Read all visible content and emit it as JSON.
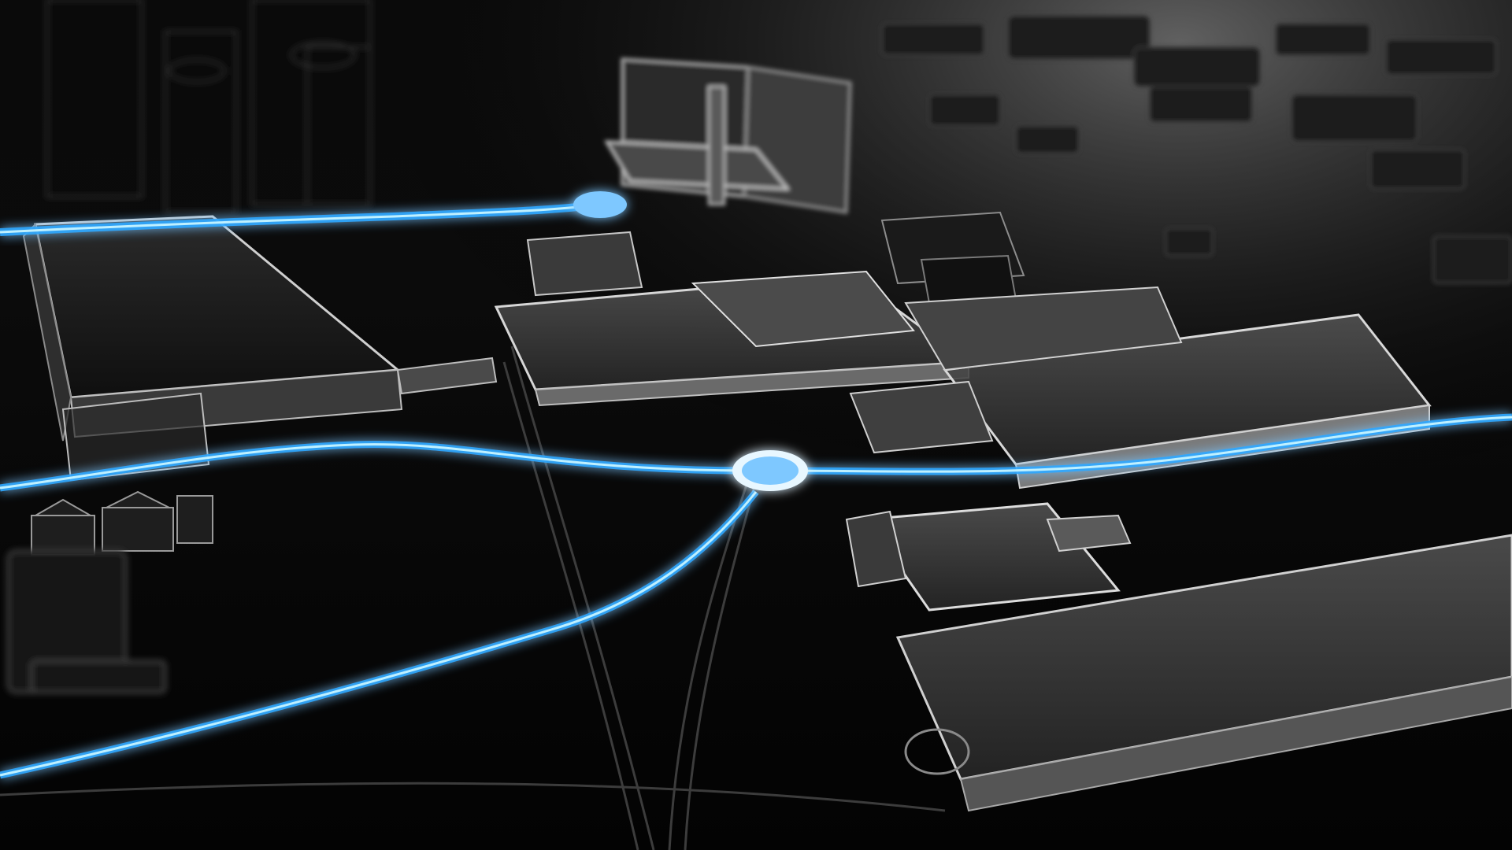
{
  "scene": {
    "kind": "3d-render",
    "subject": "city-map-glass-buildings",
    "style": "dark-monochrome-with-glowing-routes"
  },
  "colors": {
    "background": "#000000",
    "ground_far": "#5a5a5a",
    "ground_mid": "#1e1e1e",
    "ground_near": "#050505",
    "building_fill": "#3a3a3a",
    "building_edge": "#c9c9c9",
    "route_glow": "#2aa7ff",
    "route_core": "#bff0ff",
    "node_fill": "#7ec8ff",
    "node_ring": "#e8f7ff"
  },
  "routes": [
    {
      "name": "upper-route"
    },
    {
      "name": "main-route"
    },
    {
      "name": "lower-branch-route"
    }
  ],
  "nodes": [
    {
      "name": "upper-node"
    },
    {
      "name": "central-node"
    }
  ]
}
